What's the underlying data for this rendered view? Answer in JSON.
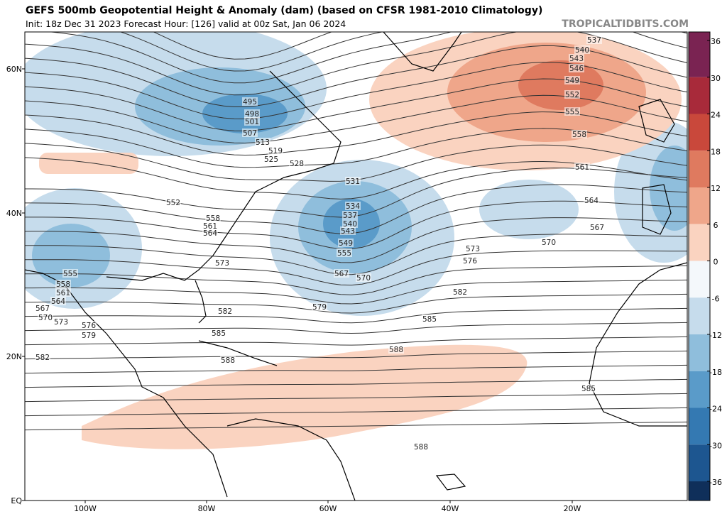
{
  "header": {
    "title": "GEFS 500mb Geopotential Height & Anomaly (dam) (based on CFSR 1981-2010 Climatology)",
    "subtitle": "Init: 18z Dec 31 2023   Forecast Hour: [126]   valid at 00z Sat, Jan 06 2024",
    "credit": "TROPICALTIDBITS.COM"
  },
  "map": {
    "lat_labels": [
      "60N",
      "40N",
      "20N",
      "EQ"
    ],
    "lon_labels": [
      "100W",
      "80W",
      "60W",
      "40W",
      "20W"
    ],
    "contour_labels": [
      "495",
      "498",
      "501",
      "507",
      "513",
      "519",
      "525",
      "528",
      "531",
      "534",
      "537",
      "540",
      "543",
      "549",
      "555",
      "567",
      "570",
      "579",
      "573",
      "576",
      "582",
      "585",
      "588",
      "588",
      "585",
      "582",
      "573",
      "564",
      "561",
      "558",
      "552",
      "555",
      "558",
      "561",
      "564",
      "567",
      "570",
      "573",
      "576",
      "579",
      "582",
      "585",
      "588",
      "537",
      "540",
      "543",
      "546",
      "549",
      "552",
      "555",
      "558",
      "561",
      "564",
      "567",
      "570"
    ]
  },
  "colorbar": {
    "ticks": [
      36,
      30,
      24,
      18,
      12,
      6,
      0,
      -6,
      -12,
      -18,
      -24,
      -30,
      -36
    ],
    "colors": [
      "#7a2352",
      "#a82a3a",
      "#c9483b",
      "#df7a5f",
      "#efa68a",
      "#fad3c0",
      "#f4f8fb",
      "#c6dcec",
      "#8fbedc",
      "#5a9bc9",
      "#3479b2",
      "#1d5690"
    ]
  }
}
